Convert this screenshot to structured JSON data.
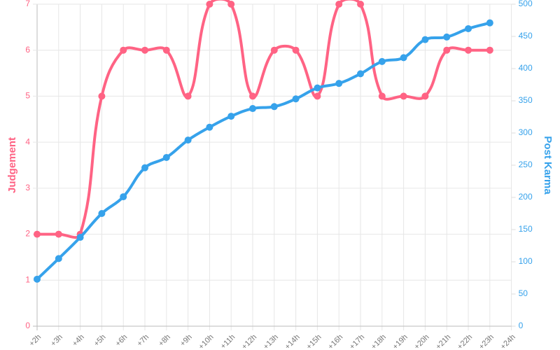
{
  "chart_data": {
    "type": "line",
    "categories": [
      "+2h",
      "+3h",
      "+4h",
      "+5h",
      "+6h",
      "+7h",
      "+8h",
      "+9h",
      "+10h",
      "+11h",
      "+12h",
      "+13h",
      "+14h",
      "+15h",
      "+16h",
      "+17h",
      "+18h",
      "+19h",
      "+20h",
      "+21h",
      "+22h",
      "+23h",
      "+24h"
    ],
    "series": [
      {
        "name": "Judgement",
        "color": "#ff6384",
        "axis": "y",
        "values": [
          2,
          2,
          2,
          5,
          6,
          6,
          6,
          5,
          7,
          7,
          5,
          6,
          6,
          5,
          7,
          7,
          5,
          5,
          5,
          6,
          6,
          6,
          null
        ]
      },
      {
        "name": "Post Karma",
        "color": "#36a2eb",
        "axis": "y2",
        "values": [
          73,
          105,
          138,
          175,
          201,
          246,
          262,
          289,
          309,
          326,
          338,
          341,
          353,
          370,
          377,
          392,
          411,
          417,
          445,
          449,
          462,
          471,
          null
        ]
      }
    ],
    "ylabel": "Judgement",
    "y2label": "Post Karma",
    "ylim": [
      0,
      7
    ],
    "yticks": [
      0,
      1,
      2,
      3,
      4,
      5,
      6,
      7
    ],
    "y2lim": [
      0,
      500
    ],
    "y2ticks": [
      0,
      50,
      100,
      150,
      200,
      250,
      300,
      350,
      400,
      450,
      500
    ],
    "grid": true
  }
}
